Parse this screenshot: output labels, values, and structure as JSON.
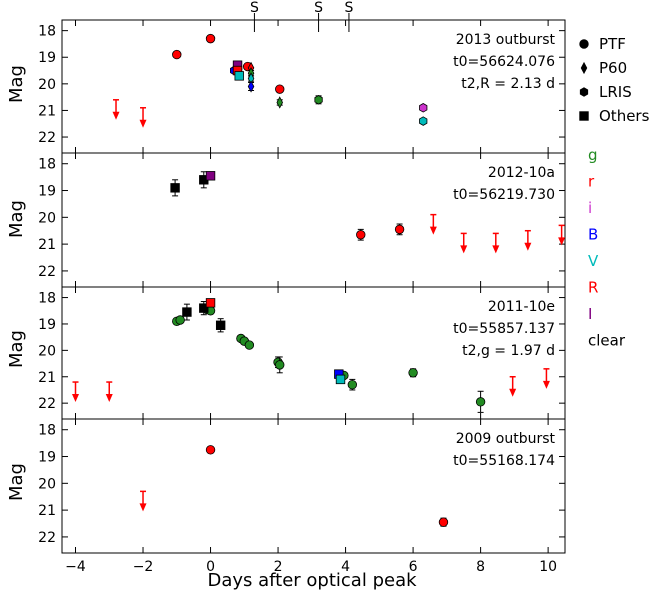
{
  "chart_data": {
    "type": "scatter",
    "xlabel": "Days after optical peak",
    "ylabel": "Mag",
    "xlim": [
      -4.4,
      10.5
    ],
    "ylim": [
      22.6,
      17.6
    ],
    "y_inverted": true,
    "x_ticks": [
      -4,
      -2,
      0,
      2,
      4,
      6,
      8,
      10
    ],
    "x_tick_labels": [
      "−4",
      "−2",
      "0",
      "2",
      "4",
      "6",
      "8",
      "10"
    ],
    "y_ticks": [
      18,
      19,
      20,
      21,
      22
    ],
    "spectra_marker_label": "S",
    "spectra_epochs": [
      1.3,
      3.2,
      4.1
    ],
    "band_colors": {
      "g": "#228b22",
      "r": "#ff0000",
      "i": "#cc33cc",
      "B": "#0000ff",
      "V": "#00bbbb",
      "R": "#ff0000",
      "I": "#800080",
      "clear": "#000000"
    },
    "legend_markers": [
      {
        "label": "PTF",
        "marker": "circle"
      },
      {
        "label": "P60",
        "marker": "diamond"
      },
      {
        "label": "LRIS",
        "marker": "hexagon"
      },
      {
        "label": "Others",
        "marker": "square"
      }
    ],
    "legend_bands": [
      "g",
      "r",
      "i",
      "B",
      "V",
      "R",
      "I",
      "clear"
    ],
    "panels": [
      {
        "name": "2013 outburst",
        "annotations": [
          "2013 outburst",
          "t0=56624.076",
          "t2,R = 2.13 d"
        ],
        "points": [
          {
            "x": -1.0,
            "y": 18.9,
            "band": "r",
            "marker": "circle"
          },
          {
            "x": 0.0,
            "y": 18.3,
            "band": "r",
            "marker": "circle"
          },
          {
            "x": 1.1,
            "y": 19.35,
            "band": "r",
            "marker": "circle"
          },
          {
            "x": 2.05,
            "y": 20.2,
            "band": "r",
            "marker": "circle"
          },
          {
            "x": 1.2,
            "y": 19.4,
            "band": "r",
            "marker": "diamond"
          },
          {
            "x": 1.2,
            "y": 19.6,
            "band": "g",
            "marker": "diamond",
            "err": 0.1
          },
          {
            "x": 1.2,
            "y": 19.8,
            "band": "V",
            "marker": "diamond",
            "err": 0.1
          },
          {
            "x": 1.2,
            "y": 20.1,
            "band": "B",
            "marker": "diamond",
            "err": 0.15
          },
          {
            "x": 2.05,
            "y": 20.7,
            "band": "g",
            "marker": "diamond",
            "err": 0.1
          },
          {
            "x": 0.7,
            "y": 19.5,
            "band": "B",
            "marker": "hexagon"
          },
          {
            "x": 3.2,
            "y": 20.6,
            "band": "g",
            "marker": "hexagon",
            "err": 0.15
          },
          {
            "x": 6.3,
            "y": 20.9,
            "band": "i",
            "marker": "hexagon"
          },
          {
            "x": 6.3,
            "y": 21.4,
            "band": "V",
            "marker": "hexagon"
          },
          {
            "x": 0.8,
            "y": 19.3,
            "band": "I",
            "marker": "square"
          },
          {
            "x": 0.8,
            "y": 19.5,
            "band": "R",
            "marker": "square"
          },
          {
            "x": 0.85,
            "y": 19.7,
            "band": "V",
            "marker": "square"
          }
        ],
        "upper_limits": [
          {
            "x": -2.8,
            "y": 20.6,
            "band": "r"
          },
          {
            "x": -2.0,
            "y": 20.9,
            "band": "r"
          }
        ]
      },
      {
        "name": "2012-10a",
        "annotations": [
          "2012-10a",
          "t0=56219.730"
        ],
        "points": [
          {
            "x": -1.05,
            "y": 18.9,
            "band": "clear",
            "marker": "square",
            "err": 0.3
          },
          {
            "x": -0.2,
            "y": 18.6,
            "band": "clear",
            "marker": "square",
            "err": 0.3
          },
          {
            "x": 0.0,
            "y": 18.45,
            "band": "I",
            "marker": "square"
          },
          {
            "x": 4.45,
            "y": 20.65,
            "band": "r",
            "marker": "circle",
            "err": 0.2
          },
          {
            "x": 5.6,
            "y": 20.45,
            "band": "r",
            "marker": "circle",
            "err": 0.2
          }
        ],
        "upper_limits": [
          {
            "x": 6.6,
            "y": 19.9,
            "band": "r"
          },
          {
            "x": 7.5,
            "y": 20.6,
            "band": "r"
          },
          {
            "x": 8.45,
            "y": 20.6,
            "band": "r"
          },
          {
            "x": 9.4,
            "y": 20.5,
            "band": "r"
          },
          {
            "x": 10.4,
            "y": 20.3,
            "band": "r"
          }
        ]
      },
      {
        "name": "2011-10e",
        "annotations": [
          "2011-10e",
          "t0=55857.137",
          "t2,g = 1.97 d"
        ],
        "points": [
          {
            "x": -1.0,
            "y": 18.9,
            "band": "g",
            "marker": "circle"
          },
          {
            "x": -0.9,
            "y": 18.85,
            "band": "g",
            "marker": "circle"
          },
          {
            "x": -0.1,
            "y": 18.45,
            "band": "g",
            "marker": "circle"
          },
          {
            "x": 0.0,
            "y": 18.5,
            "band": "g",
            "marker": "circle"
          },
          {
            "x": 0.9,
            "y": 19.55,
            "band": "g",
            "marker": "circle"
          },
          {
            "x": 1.0,
            "y": 19.65,
            "band": "g",
            "marker": "circle"
          },
          {
            "x": 1.15,
            "y": 19.8,
            "band": "g",
            "marker": "circle"
          },
          {
            "x": 2.0,
            "y": 20.45,
            "band": "g",
            "marker": "circle",
            "err": 0.2
          },
          {
            "x": 2.05,
            "y": 20.55,
            "band": "g",
            "marker": "circle",
            "err": 0.3
          },
          {
            "x": 3.95,
            "y": 20.95,
            "band": "g",
            "marker": "circle"
          },
          {
            "x": 4.2,
            "y": 21.3,
            "band": "g",
            "marker": "circle",
            "err": 0.2
          },
          {
            "x": 6.0,
            "y": 20.85,
            "band": "g",
            "marker": "circle",
            "err": 0.15
          },
          {
            "x": 8.0,
            "y": 21.95,
            "band": "g",
            "marker": "circle",
            "err": 0.4
          },
          {
            "x": -0.7,
            "y": 18.55,
            "band": "clear",
            "marker": "square",
            "err": 0.3
          },
          {
            "x": -0.2,
            "y": 18.4,
            "band": "clear",
            "marker": "square",
            "err": 0.25
          },
          {
            "x": 0.3,
            "y": 19.05,
            "band": "clear",
            "marker": "square",
            "err": 0.25
          },
          {
            "x": 0.0,
            "y": 18.2,
            "band": "R",
            "marker": "square"
          },
          {
            "x": 3.8,
            "y": 20.9,
            "band": "B",
            "marker": "square"
          },
          {
            "x": 3.85,
            "y": 21.1,
            "band": "V",
            "marker": "square"
          }
        ],
        "upper_limits": [
          {
            "x": -4.0,
            "y": 21.2,
            "band": "r"
          },
          {
            "x": -3.0,
            "y": 21.2,
            "band": "r"
          },
          {
            "x": 8.95,
            "y": 21.0,
            "band": "r"
          },
          {
            "x": 9.95,
            "y": 20.7,
            "band": "r"
          }
        ]
      },
      {
        "name": "2009 outburst",
        "annotations": [
          "2009 outburst",
          "t0=55168.174"
        ],
        "points": [
          {
            "x": 0.0,
            "y": 18.75,
            "band": "r",
            "marker": "circle"
          },
          {
            "x": 6.9,
            "y": 21.45,
            "band": "r",
            "marker": "circle",
            "err": 0.15
          }
        ],
        "upper_limits": [
          {
            "x": -2.0,
            "y": 20.3,
            "band": "r"
          }
        ]
      }
    ]
  }
}
